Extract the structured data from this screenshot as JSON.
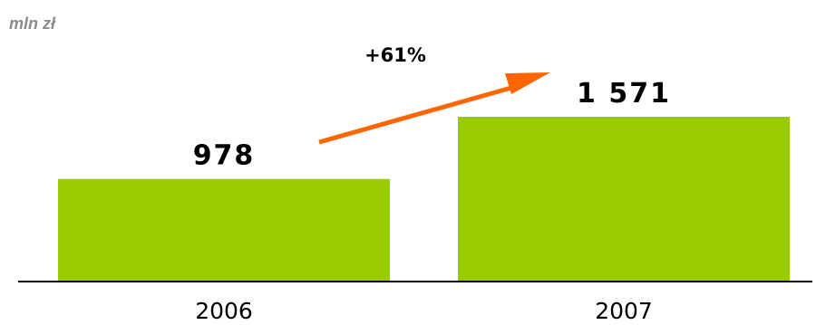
{
  "chart_data": {
    "type": "bar",
    "unit_label": "mln zł",
    "categories": [
      "2006",
      "2007"
    ],
    "values": [
      978,
      1571
    ],
    "value_labels": [
      "978",
      "1 571"
    ],
    "growth_label": "+61%",
    "colors": {
      "bar": "#99cc00",
      "arrow": "#ff6600",
      "axis": "#000000",
      "unit_text": "#8c8c8c"
    }
  }
}
